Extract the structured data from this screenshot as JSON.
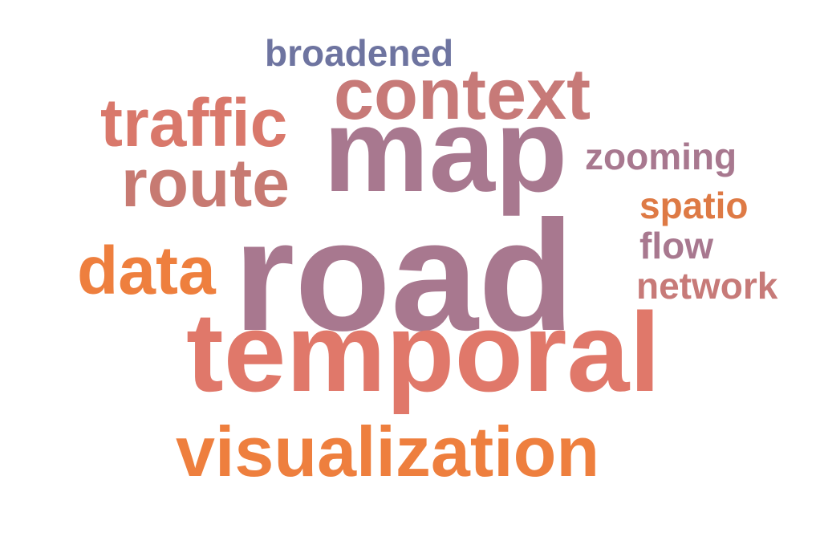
{
  "words": [
    {
      "text": "road",
      "color": "#A8788F"
    },
    {
      "text": "temporal",
      "color": "#E0786A"
    },
    {
      "text": "map",
      "color": "#A8788F"
    },
    {
      "text": "visualization",
      "color": "#EE7F3E"
    },
    {
      "text": "context",
      "color": "#C77A78"
    },
    {
      "text": "traffic",
      "color": "#D9786B"
    },
    {
      "text": "route",
      "color": "#C77A72"
    },
    {
      "text": "data",
      "color": "#EE7F3E"
    },
    {
      "text": "broadened",
      "color": "#6E74A0"
    },
    {
      "text": "zooming",
      "color": "#A8788F"
    },
    {
      "text": "spatio",
      "color": "#DE7A45"
    },
    {
      "text": "flow",
      "color": "#A8788F"
    },
    {
      "text": "network",
      "color": "#C77A78"
    }
  ]
}
